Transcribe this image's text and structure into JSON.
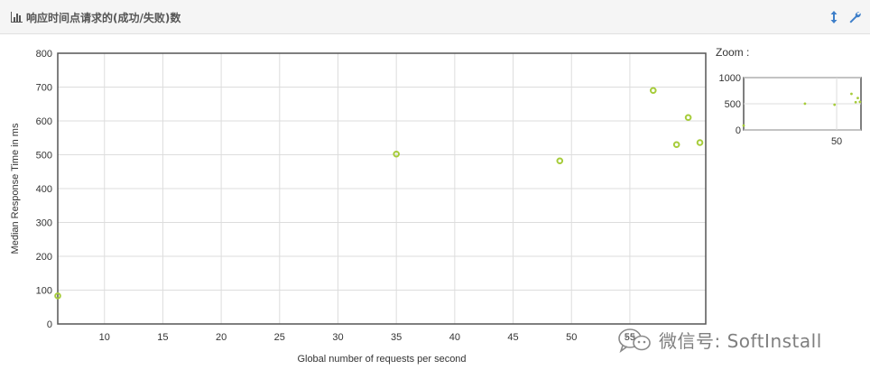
{
  "header": {
    "title": "响应时间点请求的(成功/失败)数",
    "title_icon": "bar-chart-icon",
    "toggle_icon": "vertical-arrows-icon",
    "settings_icon": "wrench-icon"
  },
  "zoom": {
    "label": "Zoom :",
    "y_ticks": [
      "1000",
      "500",
      "0"
    ],
    "x_ticks": [
      "50"
    ]
  },
  "watermark": {
    "text": "微信号: SoftInstall"
  },
  "colors": {
    "point": "#a6cc3a",
    "axis": "#555555",
    "grid": "#dddddd",
    "header_bg": "#f5f5f5",
    "icon_blue": "#3d7ec9"
  },
  "chart_data": {
    "type": "scatter",
    "xlabel": "Global number of requests per second",
    "ylabel": "Median Response Time in ms",
    "xlim": [
      6,
      61.5
    ],
    "ylim": [
      0,
      800
    ],
    "x_ticks": [
      10,
      15,
      20,
      25,
      30,
      35,
      40,
      45,
      50,
      55
    ],
    "y_ticks": [
      0,
      100,
      200,
      300,
      400,
      500,
      600,
      700,
      800
    ],
    "grid": true,
    "series": [
      {
        "points": [
          {
            "x": 6,
            "y": 83
          },
          {
            "x": 35,
            "y": 502
          },
          {
            "x": 49,
            "y": 482
          },
          {
            "x": 57,
            "y": 690
          },
          {
            "x": 59,
            "y": 530
          },
          {
            "x": 60,
            "y": 610
          },
          {
            "x": 61,
            "y": 536
          }
        ]
      }
    ]
  }
}
